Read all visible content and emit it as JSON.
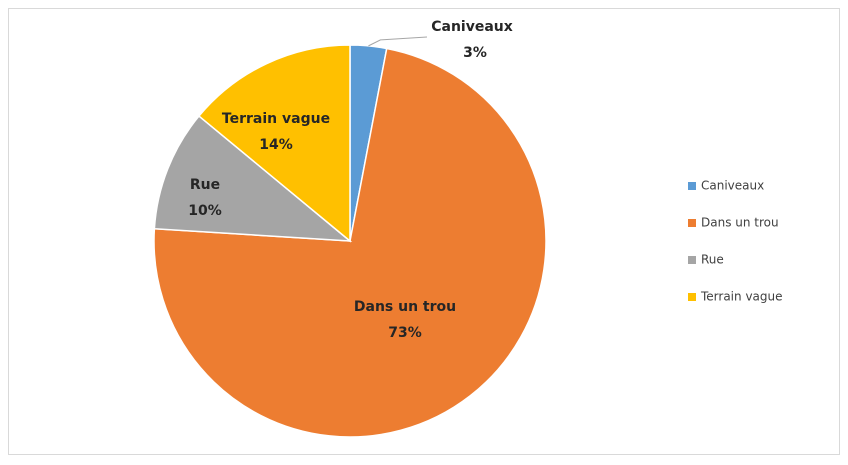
{
  "chart_data": {
    "type": "pie",
    "categories": [
      "Caniveaux",
      "Dans un trou",
      "Rue",
      "Terrain vague"
    ],
    "values": [
      3,
      73,
      10,
      14
    ],
    "value_labels": [
      "3%",
      "73%",
      "10%",
      "14%"
    ],
    "colors": [
      "#5b9bd5",
      "#ed7d31",
      "#a5a5a5",
      "#ffc000"
    ],
    "legend": "right"
  }
}
